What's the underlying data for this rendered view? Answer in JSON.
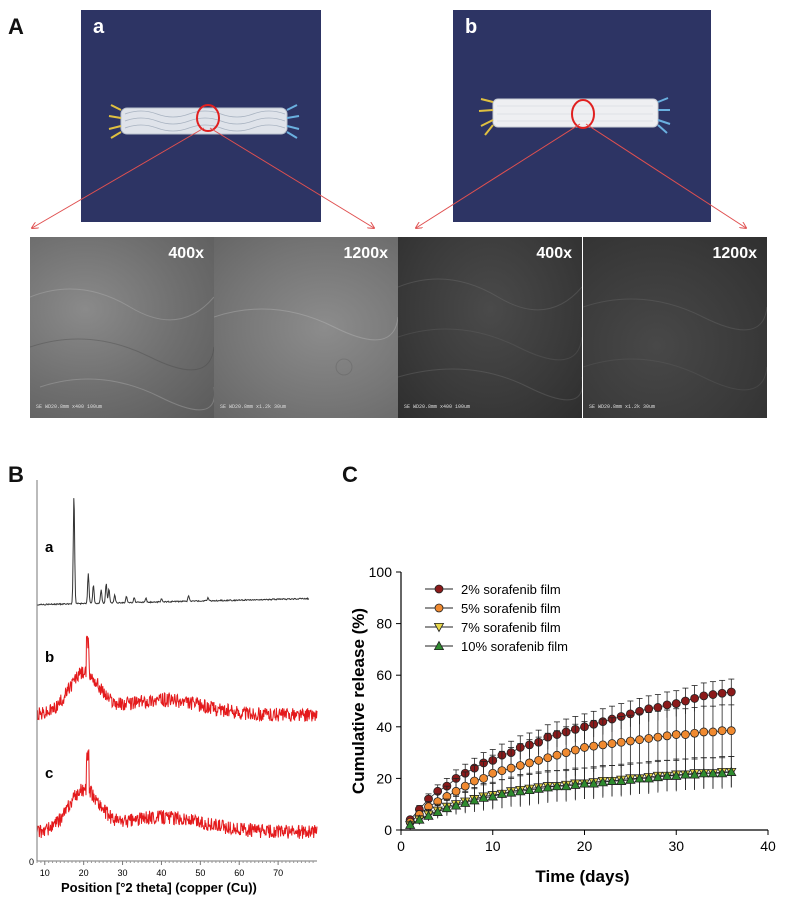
{
  "panel_A": {
    "letter": "A",
    "photos": [
      {
        "label": "a"
      },
      {
        "label": "b"
      }
    ],
    "sem_images": [
      {
        "magnification": "400x",
        "footer": "SE        WD20.8mm   x400   100um"
      },
      {
        "magnification": "1200x",
        "footer": "SE        WD20.8mm   x1.2k   30um"
      },
      {
        "magnification": "400x",
        "footer": "SE        WD20.8mm   x400   100um"
      },
      {
        "magnification": "1200x",
        "footer": "SE        WD20.8mm   x1.2k   30um"
      }
    ],
    "colors": {
      "background": "#2d3464",
      "circle": "#e02020",
      "arrow": "#e05050"
    }
  },
  "panel_B": {
    "letter": "B",
    "trace_labels": [
      "a",
      "b",
      "c"
    ],
    "x_ticks": [
      10,
      20,
      30,
      40,
      50,
      60,
      70
    ],
    "y_zero": "0",
    "xlabel": "Position [°2 theta] (copper (Cu))",
    "colors": {
      "trace_a": "#333333",
      "trace_bc": "#e41a1c"
    }
  },
  "chart_data": {
    "type": "line",
    "panel_letter": "C",
    "xlabel": "Time (days)",
    "ylabel": "Cumulative release (%)",
    "xlim": [
      0,
      40
    ],
    "ylim": [
      0,
      100
    ],
    "x_ticks": [
      0,
      10,
      20,
      30,
      40
    ],
    "y_ticks": [
      0,
      20,
      40,
      60,
      80,
      100
    ],
    "legend_position": "top-left",
    "x": [
      1,
      2,
      3,
      4,
      5,
      6,
      7,
      8,
      9,
      10,
      11,
      12,
      13,
      14,
      15,
      16,
      17,
      18,
      19,
      20,
      21,
      22,
      23,
      24,
      25,
      26,
      27,
      28,
      29,
      30,
      31,
      32,
      33,
      34,
      35,
      36
    ],
    "series": [
      {
        "name": "2% sorafenib film",
        "color": "#8b1a1a",
        "marker": "circle",
        "values": [
          4,
          8,
          12,
          15,
          17,
          20,
          22,
          24,
          26,
          27,
          29,
          30,
          32,
          33,
          34,
          36,
          37,
          38,
          39,
          40,
          41,
          42,
          43,
          44,
          45,
          46,
          47,
          47.5,
          48.5,
          49,
          50,
          51,
          52,
          52.5,
          53,
          53.5
        ],
        "error": [
          1,
          1.5,
          2,
          2.5,
          3,
          3.3,
          3.5,
          3.8,
          4,
          4.2,
          4.3,
          4.4,
          4.5,
          4.6,
          4.7,
          4.8,
          4.9,
          5,
          5,
          5,
          5,
          5,
          5,
          5,
          5,
          5,
          5,
          5,
          5,
          5,
          5,
          5,
          5,
          5,
          5,
          5
        ]
      },
      {
        "name": "5% sorafenib film",
        "color": "#f08a30",
        "marker": "circle",
        "values": [
          3,
          6,
          9,
          11,
          13,
          15,
          17,
          19,
          20,
          22,
          23,
          24,
          25,
          26,
          27,
          28,
          29,
          30,
          31,
          32,
          32.5,
          33,
          33.5,
          34,
          34.5,
          35,
          35.5,
          36,
          36.5,
          37,
          37,
          37.5,
          38,
          38,
          38.5,
          38.5
        ],
        "error": [
          1,
          1.5,
          2,
          3,
          4,
          5,
          5.5,
          6,
          6.5,
          7,
          7.5,
          8,
          8.5,
          9,
          9,
          9.5,
          9.5,
          10,
          10,
          10,
          10,
          10,
          10,
          10,
          10,
          10,
          10,
          10,
          10,
          10,
          10,
          10,
          10,
          10,
          10,
          10
        ]
      },
      {
        "name": "7% sorafenib film",
        "color": "#e8d84a",
        "marker": "triangle-down",
        "values": [
          2,
          4,
          6,
          7.5,
          9,
          10,
          11,
          12,
          13,
          13.5,
          14,
          15,
          15.5,
          16,
          16.5,
          17,
          17,
          17.5,
          18,
          18,
          18.5,
          19,
          19,
          19.5,
          20,
          20,
          20.5,
          21,
          21,
          21.5,
          21.5,
          22,
          22,
          22,
          22.5,
          22.5
        ],
        "error": [
          1,
          1.5,
          2,
          2.5,
          3,
          3.5,
          4,
          4.5,
          5,
          5,
          5.5,
          5.5,
          6,
          6,
          6,
          6,
          6,
          6,
          6,
          6,
          6,
          6,
          6,
          6,
          6,
          6,
          6,
          6,
          6,
          6,
          6,
          6,
          6,
          6,
          6,
          6
        ]
      },
      {
        "name": "10% sorafenib film",
        "color": "#2e8b2e",
        "marker": "triangle-up",
        "values": [
          2,
          4,
          5.5,
          7,
          8.5,
          9.5,
          10.5,
          11.5,
          12.5,
          13,
          14,
          14.5,
          15,
          15.5,
          16,
          16.5,
          17,
          17,
          17.5,
          18,
          18,
          18.5,
          19,
          19,
          19.5,
          20,
          20,
          20.5,
          21,
          21,
          21.5,
          21.5,
          22,
          22,
          22,
          22.5
        ],
        "error": [
          1,
          1.5,
          2,
          2.5,
          3,
          3.5,
          4,
          4.5,
          5,
          5,
          5.5,
          5.5,
          6,
          6,
          6,
          6,
          6,
          6,
          6,
          6,
          6,
          6,
          6,
          6,
          6,
          6,
          6,
          6,
          6,
          6,
          6,
          6,
          6,
          6,
          6,
          6
        ]
      }
    ]
  }
}
